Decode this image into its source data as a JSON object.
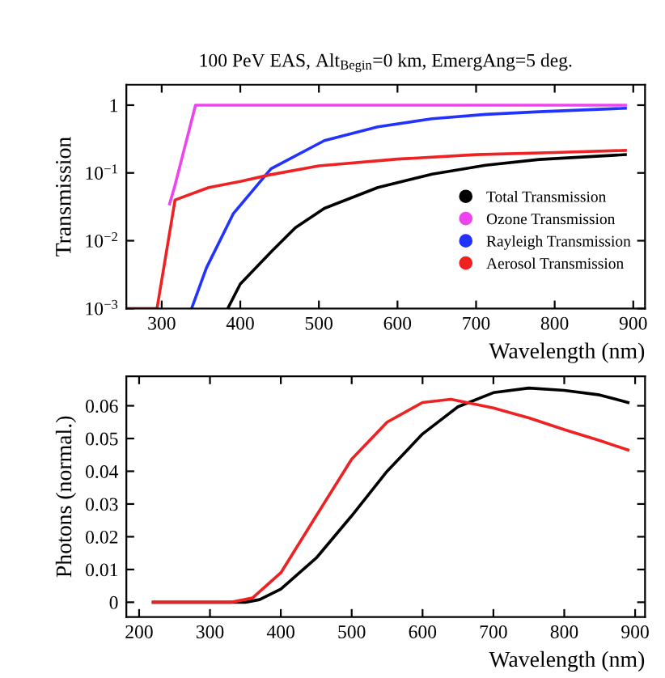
{
  "chart_data": [
    {
      "type": "line",
      "title": "100 PeV EAS, Alt$_{Begin}$=0 km, EmergAng=5 deg.",
      "xlabel": "Wavelength (nm)",
      "ylabel": "Transmission",
      "log": "y",
      "xlim": [
        255,
        915
      ],
      "xticks": [
        300,
        400,
        500,
        600,
        700,
        800,
        900
      ],
      "ylim": [
        0.001,
        2
      ],
      "yticks": [
        {
          "value": 0.001,
          "label": "10$^{−3}$"
        },
        {
          "value": 0.01,
          "label": "10$^{−2}$"
        },
        {
          "value": 0.1,
          "label": "10$^{−1}$"
        },
        1
      ],
      "legend": "bottom right",
      "series": [
        {
          "name": "Total Transmission",
          "color": "#000000",
          "x": [
            384,
            400,
            439,
            470,
            507,
            575,
            644,
            712,
            780,
            890
          ],
          "values": [
            0.001,
            0.0023,
            0.0068,
            0.0155,
            0.03,
            0.061,
            0.096,
            0.13,
            0.158,
            0.186
          ]
        },
        {
          "name": "Ozone Transmission",
          "color": "#ee44ee",
          "x": [
            310,
            316,
            343,
            890
          ],
          "values": [
            0.035,
            0.06,
            1,
            1
          ]
        },
        {
          "name": "Rayleigh Transmission",
          "color": "#2233ff",
          "x": [
            338,
            357,
            391,
            439,
            507,
            575,
            644,
            712,
            780,
            890
          ],
          "values": [
            0.001,
            0.004,
            0.025,
            0.115,
            0.3,
            0.48,
            0.63,
            0.73,
            0.8,
            0.9
          ]
        },
        {
          "name": "Aerosol Transmission",
          "color": "#ee2222",
          "x": [
            255,
            294,
            317,
            360,
            400,
            436,
            500,
            600,
            700,
            800,
            890
          ],
          "values": [
            0.001,
            0.001,
            0.04,
            0.061,
            0.075,
            0.093,
            0.127,
            0.16,
            0.186,
            0.2,
            0.215
          ]
        }
      ]
    },
    {
      "type": "line",
      "xlabel": "Wavelength (nm)",
      "ylabel": "Photons (normal.)",
      "xlim": [
        182,
        914
      ],
      "xticks": [
        200,
        300,
        400,
        500,
        600,
        700,
        800,
        900
      ],
      "ylim": [
        -0.0045,
        0.069
      ],
      "yticks": [
        0,
        0.01,
        0.02,
        0.03,
        0.04,
        0.05,
        0.06
      ],
      "series": [
        {
          "color": "#000000",
          "x": [
            220,
            350,
            370,
            400,
            450,
            500,
            550,
            600,
            650,
            700,
            750,
            800,
            850,
            890
          ],
          "values": [
            0,
            0,
            0.0008,
            0.004,
            0.0135,
            0.0264,
            0.04,
            0.0514,
            0.0597,
            0.064,
            0.0654,
            0.0647,
            0.0633,
            0.061
          ]
        },
        {
          "color": "#ee2222",
          "x": [
            220,
            330,
            360,
            400,
            450,
            500,
            550,
            600,
            640,
            700,
            750,
            800,
            850,
            890
          ],
          "values": [
            0,
            0,
            0.0013,
            0.009,
            0.0264,
            0.0437,
            0.055,
            0.061,
            0.062,
            0.0593,
            0.0563,
            0.0527,
            0.0494,
            0.0465
          ]
        }
      ]
    }
  ]
}
